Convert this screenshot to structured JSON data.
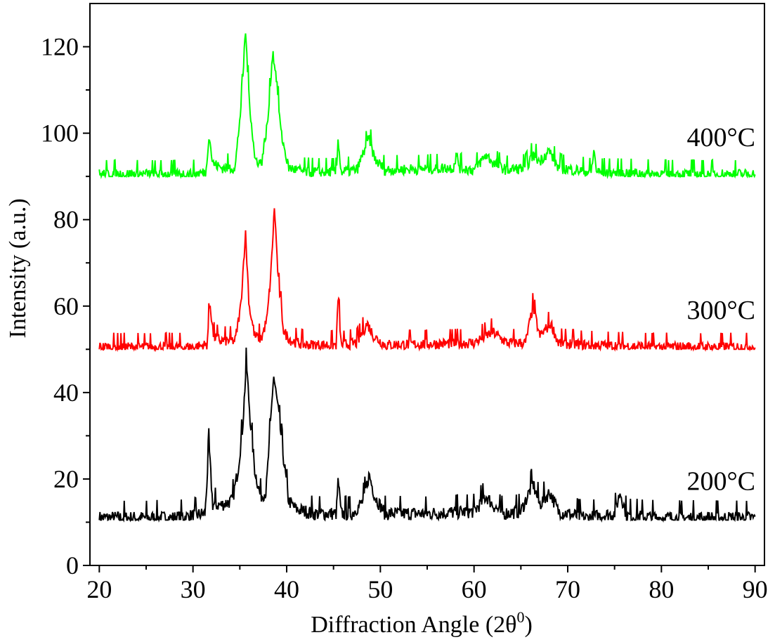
{
  "chart_data": {
    "type": "line",
    "title": "",
    "xlabel": "Diffraction Angle (2θ",
    "xlabel_sup": "0",
    "xlabel_close": ")",
    "ylabel": "Intensity (a.u.)",
    "xlim": [
      19,
      91
    ],
    "ylim": [
      0,
      130
    ],
    "xticks": [
      20,
      30,
      40,
      50,
      60,
      70,
      80,
      90
    ],
    "yticks": [
      0,
      20,
      40,
      60,
      80,
      100,
      120
    ],
    "grid": false,
    "legend": "none",
    "series": [
      {
        "name": "200°C",
        "color": "#000000",
        "baseline": 11,
        "noise": 1.6,
        "points": [
          [
            20,
            11
          ],
          [
            28,
            11
          ],
          [
            30,
            11.5
          ],
          [
            31.3,
            12
          ],
          [
            31.7,
            28
          ],
          [
            32.1,
            14
          ],
          [
            33,
            14
          ],
          [
            34.2,
            15
          ],
          [
            34.8,
            22
          ],
          [
            35.3,
            32
          ],
          [
            35.7,
            47
          ],
          [
            36.1,
            34
          ],
          [
            36.6,
            22
          ],
          [
            37.2,
            16
          ],
          [
            37.8,
            17
          ],
          [
            38.2,
            30
          ],
          [
            38.6,
            44
          ],
          [
            39.1,
            36
          ],
          [
            39.6,
            26
          ],
          [
            40.2,
            15
          ],
          [
            41,
            13
          ],
          [
            43,
            12
          ],
          [
            45.3,
            12
          ],
          [
            45.5,
            20
          ],
          [
            45.8,
            12
          ],
          [
            47,
            12
          ],
          [
            48.2,
            15
          ],
          [
            48.8,
            21
          ],
          [
            49.4,
            16
          ],
          [
            50.5,
            12
          ],
          [
            55,
            12
          ],
          [
            60,
            12.5
          ],
          [
            61.3,
            16
          ],
          [
            62,
            14
          ],
          [
            63,
            12
          ],
          [
            65,
            12.5
          ],
          [
            66.3,
            19
          ],
          [
            67,
            14
          ],
          [
            68.1,
            17
          ],
          [
            69,
            12.5
          ],
          [
            72,
            11
          ],
          [
            75,
            12
          ],
          [
            75.6,
            17
          ],
          [
            76.3,
            11.5
          ],
          [
            80,
            11
          ],
          [
            84,
            11
          ],
          [
            90,
            11
          ]
        ]
      },
      {
        "name": "300°C",
        "color": "#ff0000",
        "baseline": 50.5,
        "noise": 1.3,
        "points": [
          [
            20,
            50.5
          ],
          [
            30,
            50.5
          ],
          [
            31.5,
            51
          ],
          [
            31.8,
            61
          ],
          [
            32.2,
            53
          ],
          [
            33,
            52
          ],
          [
            34.5,
            52
          ],
          [
            35.1,
            60
          ],
          [
            35.6,
            77
          ],
          [
            36,
            60
          ],
          [
            36.6,
            53
          ],
          [
            37.3,
            52.5
          ],
          [
            37.9,
            57
          ],
          [
            38.3,
            67
          ],
          [
            38.7,
            83
          ],
          [
            39.1,
            66
          ],
          [
            39.7,
            54
          ],
          [
            40.5,
            52
          ],
          [
            42,
            51
          ],
          [
            45.3,
            51
          ],
          [
            45.5,
            63
          ],
          [
            45.8,
            51
          ],
          [
            47.5,
            51.5
          ],
          [
            48.6,
            56
          ],
          [
            49.3,
            53
          ],
          [
            50.5,
            51
          ],
          [
            60,
            51.5
          ],
          [
            62,
            54
          ],
          [
            63.5,
            51.5
          ],
          [
            65.5,
            51.5
          ],
          [
            66.3,
            60
          ],
          [
            67,
            53
          ],
          [
            68.2,
            56
          ],
          [
            69,
            51.5
          ],
          [
            72,
            51
          ],
          [
            80,
            50.5
          ],
          [
            90,
            50.5
          ]
        ]
      },
      {
        "name": "400°C",
        "color": "#00ff00",
        "baseline": 90.5,
        "noise": 1.3,
        "points": [
          [
            20,
            90.5
          ],
          [
            30,
            90.5
          ],
          [
            31.4,
            91
          ],
          [
            31.7,
            100
          ],
          [
            32.1,
            93
          ],
          [
            33,
            92
          ],
          [
            34.5,
            92
          ],
          [
            35.2,
            108
          ],
          [
            35.6,
            124
          ],
          [
            36,
            108
          ],
          [
            36.6,
            94
          ],
          [
            37.3,
            93
          ],
          [
            38,
            103
          ],
          [
            38.5,
            119
          ],
          [
            38.9,
            113
          ],
          [
            39.4,
            100
          ],
          [
            40.2,
            92
          ],
          [
            42,
            91
          ],
          [
            45.3,
            91
          ],
          [
            45.5,
            99
          ],
          [
            45.8,
            91
          ],
          [
            47.5,
            91.5
          ],
          [
            48.8,
            99
          ],
          [
            49.4,
            94
          ],
          [
            50.5,
            91.5
          ],
          [
            57.8,
            92
          ],
          [
            58.1,
            95
          ],
          [
            58.5,
            92
          ],
          [
            60,
            91.5
          ],
          [
            61.3,
            95
          ],
          [
            62.1,
            93
          ],
          [
            63.5,
            91.5
          ],
          [
            65.5,
            92
          ],
          [
            66.3,
            95
          ],
          [
            67,
            93.5
          ],
          [
            68,
            96
          ],
          [
            69,
            92
          ],
          [
            72.5,
            91
          ],
          [
            72.8,
            96
          ],
          [
            73.1,
            91
          ],
          [
            80,
            90.5
          ],
          [
            90,
            90.5
          ]
        ]
      }
    ]
  }
}
